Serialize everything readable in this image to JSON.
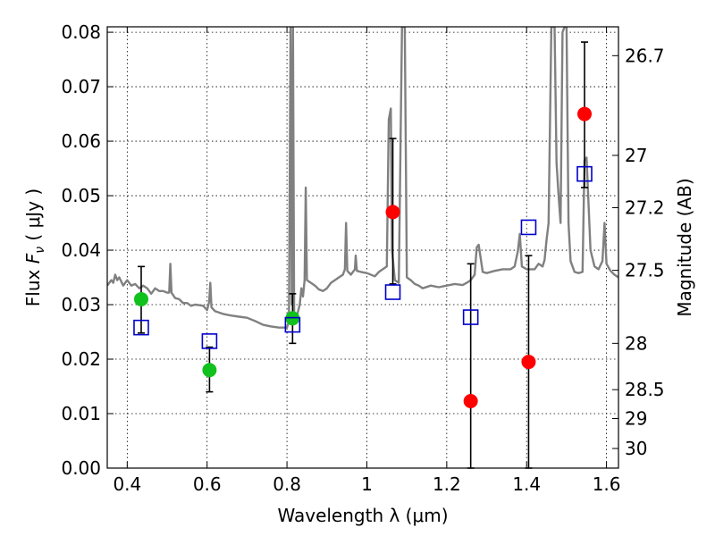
{
  "chart_data": {
    "type": "scatter",
    "xlabel": "Wavelength  λ (μm)",
    "ylabel_parts": {
      "pre": "Flux  ",
      "sym": "F",
      "sub": "ν",
      "post": "  ( μJy )"
    },
    "ylabel_right": "Magnitude (AB)",
    "xlim": [
      0.35,
      1.63
    ],
    "ylim": [
      0.0,
      0.081
    ],
    "x_ticks": [
      0.4,
      0.6,
      0.8,
      1.0,
      1.2,
      1.4,
      1.6
    ],
    "x_tick_labels": [
      "0.4",
      "0.6",
      "0.8",
      "1",
      "1.2",
      "1.4",
      "1.6"
    ],
    "y_ticks": [
      0.0,
      0.01,
      0.02,
      0.03,
      0.04,
      0.05,
      0.06,
      0.07,
      0.08
    ],
    "y_tick_labels": [
      "0.00",
      "0.01",
      "0.02",
      "0.03",
      "0.04",
      "0.05",
      "0.06",
      "0.07",
      "0.08"
    ],
    "right_ticks": [
      {
        "label": "26.7",
        "flux": 0.0757
      },
      {
        "label": "27",
        "flux": 0.0574
      },
      {
        "label": "27.2",
        "flux": 0.0478
      },
      {
        "label": "27.5",
        "flux": 0.0363
      },
      {
        "label": "28",
        "flux": 0.0229
      },
      {
        "label": "28.5",
        "flux": 0.0144
      },
      {
        "label": "29",
        "flux": 0.0091
      },
      {
        "label": "30",
        "flux": 0.0036
      }
    ],
    "grid": true,
    "series": [
      {
        "style": "green-circle",
        "color": "#11c11d",
        "points": [
          {
            "x": 0.435,
            "y": 0.031,
            "err": [
              0.0248,
              0.037
            ]
          },
          {
            "x": 0.606,
            "y": 0.018,
            "err": [
              0.014,
              0.0222
            ]
          },
          {
            "x": 0.814,
            "y": 0.0275,
            "err": [
              0.0229,
              0.032
            ]
          }
        ]
      },
      {
        "style": "red-circle",
        "color": "#ff0000",
        "points": [
          {
            "x": 1.065,
            "y": 0.047,
            "err": [
              0.0338,
              0.0605
            ]
          },
          {
            "x": 1.26,
            "y": 0.0123,
            "err": [
              0.0,
              0.0375
            ]
          },
          {
            "x": 1.405,
            "y": 0.0195,
            "err": [
              0.0,
              0.039
            ]
          },
          {
            "x": 1.545,
            "y": 0.065,
            "err": [
              0.0515,
              0.0782
            ]
          }
        ]
      },
      {
        "style": "blue-square",
        "color": "#0000cc",
        "points": [
          {
            "x": 0.435,
            "y": 0.0258
          },
          {
            "x": 0.606,
            "y": 0.0233
          },
          {
            "x": 0.814,
            "y": 0.0263
          },
          {
            "x": 1.065,
            "y": 0.0323
          },
          {
            "x": 1.26,
            "y": 0.0277
          },
          {
            "x": 1.405,
            "y": 0.0442
          },
          {
            "x": 1.545,
            "y": 0.054
          }
        ]
      }
    ],
    "spectrum": {
      "color": "#808080",
      "points": [
        [
          0.35,
          0.0335
        ],
        [
          0.36,
          0.0345
        ],
        [
          0.365,
          0.034
        ],
        [
          0.37,
          0.0355
        ],
        [
          0.375,
          0.0345
        ],
        [
          0.38,
          0.035
        ],
        [
          0.39,
          0.0335
        ],
        [
          0.4,
          0.0345
        ],
        [
          0.41,
          0.0335
        ],
        [
          0.42,
          0.0338
        ],
        [
          0.43,
          0.033
        ],
        [
          0.44,
          0.0335
        ],
        [
          0.45,
          0.033
        ],
        [
          0.46,
          0.032
        ],
        [
          0.47,
          0.033
        ],
        [
          0.48,
          0.0325
        ],
        [
          0.49,
          0.0325
        ],
        [
          0.5,
          0.0322
        ],
        [
          0.505,
          0.0322
        ],
        [
          0.508,
          0.0375
        ],
        [
          0.511,
          0.0322
        ],
        [
          0.52,
          0.0312
        ],
        [
          0.53,
          0.031
        ],
        [
          0.54,
          0.0303
        ],
        [
          0.55,
          0.0303
        ],
        [
          0.56,
          0.0298
        ],
        [
          0.57,
          0.03
        ],
        [
          0.58,
          0.0299
        ],
        [
          0.59,
          0.0298
        ],
        [
          0.6,
          0.029
        ],
        [
          0.605,
          0.0305
        ],
        [
          0.608,
          0.034
        ],
        [
          0.611,
          0.0295
        ],
        [
          0.62,
          0.0288
        ],
        [
          0.64,
          0.0283
        ],
        [
          0.66,
          0.028
        ],
        [
          0.68,
          0.0278
        ],
        [
          0.7,
          0.0276
        ],
        [
          0.72,
          0.027
        ],
        [
          0.74,
          0.0263
        ],
        [
          0.76,
          0.026
        ],
        [
          0.78,
          0.0258
        ],
        [
          0.8,
          0.0258
        ],
        [
          0.805,
          0.027
        ],
        [
          0.809,
          0.081
        ],
        [
          0.812,
          0.03
        ],
        [
          0.815,
          0.081
        ],
        [
          0.818,
          0.028
        ],
        [
          0.825,
          0.028
        ],
        [
          0.832,
          0.03
        ],
        [
          0.836,
          0.033
        ],
        [
          0.84,
          0.0315
        ],
        [
          0.844,
          0.0345
        ],
        [
          0.847,
          0.0515
        ],
        [
          0.85,
          0.0345
        ],
        [
          0.86,
          0.034
        ],
        [
          0.87,
          0.0335
        ],
        [
          0.88,
          0.0328
        ],
        [
          0.89,
          0.0325
        ],
        [
          0.9,
          0.033
        ],
        [
          0.91,
          0.034
        ],
        [
          0.92,
          0.0345
        ],
        [
          0.93,
          0.035
        ],
        [
          0.94,
          0.0355
        ],
        [
          0.945,
          0.0365
        ],
        [
          0.948,
          0.045
        ],
        [
          0.951,
          0.0362
        ],
        [
          0.96,
          0.0355
        ],
        [
          0.97,
          0.0365
        ],
        [
          0.972,
          0.039
        ],
        [
          0.975,
          0.0362
        ],
        [
          0.985,
          0.036
        ],
        [
          1.0,
          0.0358
        ],
        [
          1.02,
          0.0352
        ],
        [
          1.03,
          0.036
        ],
        [
          1.04,
          0.0365
        ],
        [
          1.05,
          0.037
        ],
        [
          1.055,
          0.064
        ],
        [
          1.06,
          0.066
        ],
        [
          1.063,
          0.04
        ],
        [
          1.07,
          0.0345
        ],
        [
          1.08,
          0.034
        ],
        [
          1.088,
          0.081
        ],
        [
          1.095,
          0.081
        ],
        [
          1.1,
          0.035
        ],
        [
          1.11,
          0.0345
        ],
        [
          1.12,
          0.0338
        ],
        [
          1.13,
          0.0335
        ],
        [
          1.14,
          0.033
        ],
        [
          1.16,
          0.0335
        ],
        [
          1.18,
          0.0332
        ],
        [
          1.2,
          0.0335
        ],
        [
          1.22,
          0.0338
        ],
        [
          1.24,
          0.0336
        ],
        [
          1.25,
          0.034
        ],
        [
          1.26,
          0.0345
        ],
        [
          1.27,
          0.0355
        ],
        [
          1.275,
          0.0405
        ],
        [
          1.28,
          0.041
        ],
        [
          1.29,
          0.036
        ],
        [
          1.3,
          0.0358
        ],
        [
          1.32,
          0.0362
        ],
        [
          1.34,
          0.0365
        ],
        [
          1.36,
          0.0365
        ],
        [
          1.37,
          0.037
        ],
        [
          1.378,
          0.0398
        ],
        [
          1.383,
          0.043
        ],
        [
          1.388,
          0.037
        ],
        [
          1.4,
          0.0365
        ],
        [
          1.42,
          0.0365
        ],
        [
          1.43,
          0.0375
        ],
        [
          1.44,
          0.037
        ],
        [
          1.445,
          0.0382
        ],
        [
          1.45,
          0.042
        ],
        [
          1.455,
          0.045
        ],
        [
          1.462,
          0.081
        ],
        [
          1.47,
          0.081
        ],
        [
          1.475,
          0.056
        ],
        [
          1.48,
          0.05
        ],
        [
          1.485,
          0.045
        ],
        [
          1.49,
          0.08
        ],
        [
          1.495,
          0.081
        ],
        [
          1.5,
          0.081
        ],
        [
          1.505,
          0.045
        ],
        [
          1.51,
          0.038
        ],
        [
          1.52,
          0.036
        ],
        [
          1.53,
          0.0358
        ],
        [
          1.54,
          0.036
        ],
        [
          1.545,
          0.0565
        ],
        [
          1.55,
          0.057
        ],
        [
          1.56,
          0.04
        ],
        [
          1.57,
          0.037
        ],
        [
          1.58,
          0.0365
        ],
        [
          1.59,
          0.038
        ],
        [
          1.595,
          0.045
        ],
        [
          1.6,
          0.0375
        ],
        [
          1.61,
          0.0362
        ],
        [
          1.62,
          0.0355
        ],
        [
          1.63,
          0.035
        ]
      ]
    }
  }
}
